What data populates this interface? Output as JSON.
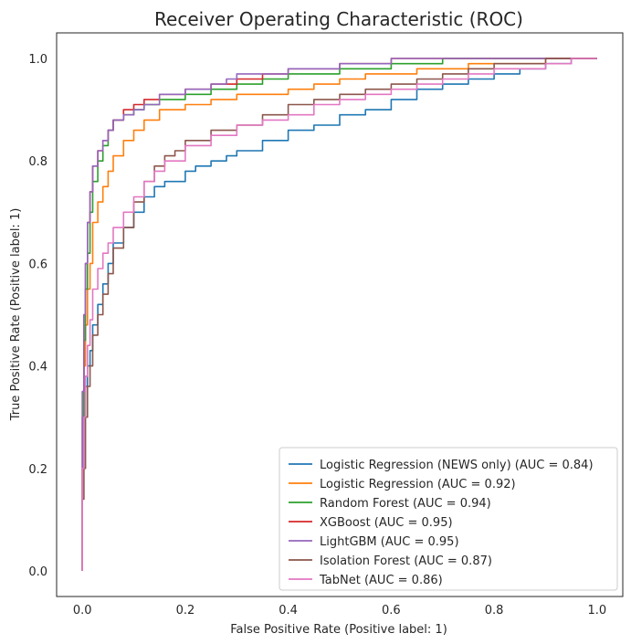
{
  "chart_data": {
    "type": "line",
    "title": "Receiver Operating Characteristic (ROC)",
    "xlabel": "False Positive Rate (Positive label: 1)",
    "ylabel": "True Positive Rate (Positive label: 1)",
    "xlim": [
      -0.05,
      1.05
    ],
    "ylim": [
      -0.05,
      1.05
    ],
    "xticks": [
      "0.0",
      "0.2",
      "0.4",
      "0.6",
      "0.8",
      "1.0"
    ],
    "yticks": [
      "0.0",
      "0.2",
      "0.4",
      "0.6",
      "0.8",
      "1.0"
    ],
    "grid": false,
    "legend_position": "lower-right",
    "series": [
      {
        "name": "Logistic Regression (NEWS only) (AUC = 0.84)",
        "color": "#1f77b4",
        "x": [
          0,
          0.003,
          0.006,
          0.01,
          0.015,
          0.02,
          0.03,
          0.04,
          0.05,
          0.06,
          0.08,
          0.1,
          0.12,
          0.14,
          0.16,
          0.18,
          0.2,
          0.22,
          0.25,
          0.28,
          0.3,
          0.35,
          0.4,
          0.45,
          0.5,
          0.55,
          0.6,
          0.65,
          0.7,
          0.75,
          0.8,
          0.85,
          0.9,
          0.95,
          1.0
        ],
        "y": [
          0,
          0.2,
          0.3,
          0.36,
          0.4,
          0.43,
          0.48,
          0.52,
          0.56,
          0.6,
          0.64,
          0.67,
          0.7,
          0.73,
          0.75,
          0.76,
          0.76,
          0.78,
          0.79,
          0.8,
          0.81,
          0.82,
          0.84,
          0.86,
          0.87,
          0.89,
          0.9,
          0.92,
          0.94,
          0.95,
          0.96,
          0.97,
          0.98,
          0.99,
          1.0
        ]
      },
      {
        "name": "Logistic Regression (AUC = 0.92)",
        "color": "#ff7f0e",
        "x": [
          0,
          0.003,
          0.006,
          0.01,
          0.015,
          0.02,
          0.03,
          0.04,
          0.05,
          0.06,
          0.08,
          0.1,
          0.12,
          0.15,
          0.18,
          0.2,
          0.25,
          0.3,
          0.35,
          0.4,
          0.45,
          0.5,
          0.55,
          0.6,
          0.65,
          0.7,
          0.75,
          0.8,
          0.85,
          0.9,
          0.95,
          1.0
        ],
        "y": [
          0,
          0.3,
          0.4,
          0.48,
          0.55,
          0.6,
          0.68,
          0.72,
          0.75,
          0.78,
          0.81,
          0.84,
          0.86,
          0.88,
          0.9,
          0.9,
          0.91,
          0.92,
          0.93,
          0.93,
          0.94,
          0.95,
          0.96,
          0.97,
          0.97,
          0.98,
          0.98,
          0.99,
          0.99,
          0.99,
          1.0,
          1.0
        ]
      },
      {
        "name": "Random Forest (AUC = 0.94)",
        "color": "#2ca02c",
        "x": [
          0,
          0.003,
          0.006,
          0.01,
          0.015,
          0.02,
          0.03,
          0.04,
          0.05,
          0.06,
          0.08,
          0.1,
          0.12,
          0.15,
          0.2,
          0.25,
          0.3,
          0.35,
          0.4,
          0.45,
          0.5,
          0.55,
          0.6,
          0.65,
          0.7,
          0.75,
          0.8,
          0.85,
          0.9,
          1.0
        ],
        "y": [
          0,
          0.3,
          0.45,
          0.55,
          0.62,
          0.7,
          0.76,
          0.8,
          0.83,
          0.86,
          0.88,
          0.89,
          0.9,
          0.91,
          0.92,
          0.93,
          0.94,
          0.95,
          0.96,
          0.97,
          0.97,
          0.98,
          0.98,
          0.99,
          0.99,
          1.0,
          1.0,
          1.0,
          1.0,
          1.0
        ]
      },
      {
        "name": "XGBoost (AUC = 0.95)",
        "color": "#d62728",
        "x": [
          0,
          0.003,
          0.006,
          0.01,
          0.015,
          0.02,
          0.03,
          0.04,
          0.05,
          0.06,
          0.08,
          0.1,
          0.12,
          0.15,
          0.2,
          0.25,
          0.3,
          0.35,
          0.4,
          0.45,
          0.5,
          0.55,
          0.6,
          0.65,
          0.7,
          0.8,
          0.9,
          1.0
        ],
        "y": [
          0,
          0.35,
          0.5,
          0.6,
          0.68,
          0.74,
          0.79,
          0.82,
          0.84,
          0.86,
          0.88,
          0.9,
          0.91,
          0.92,
          0.93,
          0.94,
          0.95,
          0.96,
          0.97,
          0.98,
          0.98,
          0.99,
          0.99,
          1.0,
          1.0,
          1.0,
          1.0,
          1.0
        ]
      },
      {
        "name": "LightGBM (AUC = 0.95)",
        "color": "#9467bd",
        "x": [
          0,
          0.003,
          0.006,
          0.01,
          0.015,
          0.02,
          0.03,
          0.04,
          0.05,
          0.06,
          0.08,
          0.1,
          0.12,
          0.15,
          0.2,
          0.25,
          0.28,
          0.3,
          0.35,
          0.4,
          0.45,
          0.5,
          0.55,
          0.6,
          0.7,
          0.8,
          0.9,
          1.0
        ],
        "y": [
          0,
          0.35,
          0.5,
          0.6,
          0.68,
          0.74,
          0.79,
          0.82,
          0.84,
          0.86,
          0.88,
          0.89,
          0.9,
          0.91,
          0.93,
          0.94,
          0.95,
          0.96,
          0.97,
          0.97,
          0.98,
          0.98,
          0.99,
          0.99,
          1.0,
          1.0,
          1.0,
          1.0
        ]
      },
      {
        "name": "Isolation Forest (AUC = 0.87)",
        "color": "#8c564b",
        "x": [
          0,
          0.003,
          0.006,
          0.01,
          0.015,
          0.02,
          0.03,
          0.04,
          0.05,
          0.06,
          0.08,
          0.1,
          0.12,
          0.14,
          0.16,
          0.18,
          0.2,
          0.25,
          0.3,
          0.35,
          0.4,
          0.45,
          0.5,
          0.55,
          0.6,
          0.65,
          0.7,
          0.75,
          0.8,
          0.85,
          0.9,
          0.95,
          1.0
        ],
        "y": [
          0,
          0.14,
          0.2,
          0.3,
          0.36,
          0.4,
          0.46,
          0.5,
          0.54,
          0.58,
          0.63,
          0.67,
          0.72,
          0.76,
          0.79,
          0.81,
          0.82,
          0.84,
          0.86,
          0.87,
          0.89,
          0.91,
          0.92,
          0.93,
          0.94,
          0.95,
          0.96,
          0.97,
          0.98,
          0.99,
          0.99,
          1.0,
          1.0
        ]
      },
      {
        "name": "TabNet (AUC = 0.86)",
        "color": "#e377c2",
        "x": [
          0,
          0.003,
          0.006,
          0.01,
          0.015,
          0.02,
          0.03,
          0.04,
          0.05,
          0.06,
          0.08,
          0.1,
          0.12,
          0.14,
          0.16,
          0.2,
          0.25,
          0.3,
          0.35,
          0.4,
          0.45,
          0.5,
          0.55,
          0.6,
          0.65,
          0.7,
          0.75,
          0.8,
          0.85,
          0.9,
          0.95,
          1.0
        ],
        "y": [
          0,
          0.2,
          0.3,
          0.38,
          0.44,
          0.49,
          0.55,
          0.59,
          0.62,
          0.64,
          0.67,
          0.7,
          0.73,
          0.76,
          0.78,
          0.8,
          0.83,
          0.85,
          0.87,
          0.88,
          0.89,
          0.91,
          0.92,
          0.93,
          0.94,
          0.95,
          0.96,
          0.97,
          0.98,
          0.98,
          0.99,
          1.0
        ]
      }
    ]
  }
}
